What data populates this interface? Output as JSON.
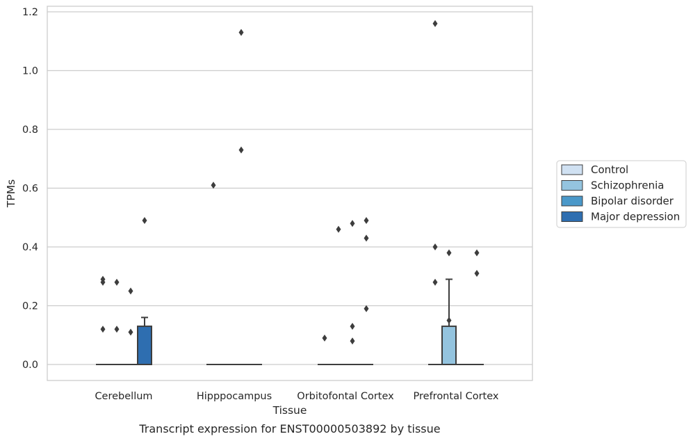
{
  "chart_data": {
    "type": "box",
    "caption": "Transcript expression for ENST00000503892 by tissue",
    "xlabel": "Tissue",
    "ylabel": "TPMs",
    "ylim": [
      -0.055,
      1.22
    ],
    "yticks": [
      "0.0",
      "0.2",
      "0.4",
      "0.6",
      "0.8",
      "1.0",
      "1.2"
    ],
    "ytick_values": [
      0.0,
      0.2,
      0.4,
      0.6,
      0.8,
      1.0,
      1.2
    ],
    "grid": "horizontal",
    "legend_position": "right",
    "categories": [
      "Cerebellum",
      "Hipppocampus",
      "Orbitofontal Cortex",
      "Prefrontal Cortex"
    ],
    "series": [
      {
        "name": "Control",
        "color": "#d0e1f2",
        "boxes": [
          {
            "q1": 0,
            "median": 0,
            "q3": 0,
            "whisker_high": 0,
            "outliers": [
              0.29,
              0.28,
              0.12
            ]
          },
          {
            "q1": 0,
            "median": 0,
            "q3": 0,
            "whisker_high": 0,
            "outliers": [
              0.61
            ]
          },
          {
            "q1": 0,
            "median": 0,
            "q3": 0,
            "whisker_high": 0,
            "outliers": [
              0.09
            ]
          },
          {
            "q1": 0,
            "median": 0,
            "q3": 0,
            "whisker_high": 0,
            "outliers": [
              1.16,
              0.4,
              0.28
            ]
          }
        ]
      },
      {
        "name": "Schizophrenia",
        "color": "#94c4df",
        "boxes": [
          {
            "q1": 0,
            "median": 0,
            "q3": 0,
            "whisker_high": 0,
            "outliers": [
              0.28,
              0.12
            ]
          },
          {
            "q1": 0,
            "median": 0,
            "q3": 0,
            "whisker_high": 0,
            "outliers": []
          },
          {
            "q1": 0,
            "median": 0,
            "q3": 0,
            "whisker_high": 0,
            "outliers": [
              0.46
            ]
          },
          {
            "q1": 0,
            "median": 0,
            "q3": 0.13,
            "whisker_high": 0.29,
            "outliers": [
              0.15,
              0.38
            ]
          }
        ]
      },
      {
        "name": "Bipolar disorder",
        "color": "#4a98c9",
        "boxes": [
          {
            "q1": 0,
            "median": 0,
            "q3": 0,
            "whisker_high": 0,
            "outliers": [
              0.25,
              0.11
            ]
          },
          {
            "q1": 0,
            "median": 0,
            "q3": 0,
            "whisker_high": 0,
            "outliers": [
              1.13,
              0.73
            ]
          },
          {
            "q1": 0,
            "median": 0,
            "q3": 0,
            "whisker_high": 0,
            "outliers": [
              0.48,
              0.13,
              0.08
            ]
          },
          {
            "q1": 0,
            "median": 0,
            "q3": 0,
            "whisker_high": 0,
            "outliers": []
          }
        ]
      },
      {
        "name": "Major depression",
        "color": "#2e6eb0",
        "boxes": [
          {
            "q1": 0,
            "median": 0,
            "q3": 0.13,
            "whisker_high": 0.16,
            "outliers": [
              0.49
            ]
          },
          {
            "q1": 0,
            "median": 0,
            "q3": 0,
            "whisker_high": 0,
            "outliers": []
          },
          {
            "q1": 0,
            "median": 0,
            "q3": 0,
            "whisker_high": 0,
            "outliers": [
              0.49,
              0.43,
              0.19
            ]
          },
          {
            "q1": 0,
            "median": 0,
            "q3": 0,
            "whisker_high": 0,
            "outliers": [
              0.38,
              0.31
            ]
          }
        ]
      }
    ]
  }
}
